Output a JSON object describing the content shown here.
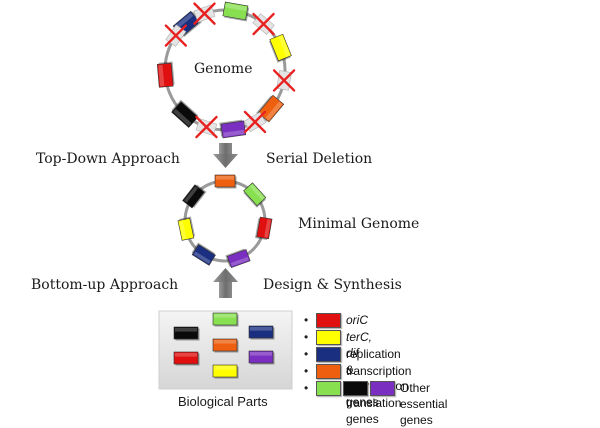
{
  "colors": {
    "red": "#e01010",
    "yellow": "#ffff00",
    "navy": "#1a2f80",
    "orange": "#ee6010",
    "green": "#88e050",
    "black": "#0a0a0a",
    "purple": "#7a2fc0",
    "ring": "#9a9a9a",
    "cross": "#e82020",
    "arrow": "#7a7a7a"
  },
  "genome": {
    "label": "Genome",
    "genes": [
      "navy",
      "green",
      "yellow",
      "orange",
      "purple",
      "black",
      "red"
    ],
    "deleted_count": 6
  },
  "minimal_genome": {
    "label": "Minimal Genome",
    "genes": [
      "orange",
      "green",
      "red",
      "purple",
      "navy",
      "yellow",
      "black"
    ]
  },
  "top_down": {
    "approach_label": "Top-Down Approach",
    "process_label": "Serial Deletion",
    "arrow": "down-arrow"
  },
  "bottom_up": {
    "approach_label": "Bottom-up Approach",
    "process_label": "Design & Synthesis",
    "arrow": "up-arrow"
  },
  "parts": {
    "label": "Biological Parts",
    "blocks": [
      "green",
      "black",
      "navy",
      "orange",
      "red",
      "purple",
      "yellow"
    ]
  },
  "legend": {
    "bullet": "•",
    "items": [
      {
        "colors": [
          "red"
        ],
        "text": "oriC",
        "italic": true
      },
      {
        "colors": [
          "yellow"
        ],
        "text": "terC, dif",
        "italic": true
      },
      {
        "colors": [
          "navy"
        ],
        "text": "replication & segregation genes",
        "italic": false
      },
      {
        "colors": [
          "orange"
        ],
        "text": "transcription & translation genes",
        "italic": false
      },
      {
        "colors": [
          "green",
          "black",
          "purple"
        ],
        "text": "Other essential genes",
        "italic": false
      }
    ]
  }
}
